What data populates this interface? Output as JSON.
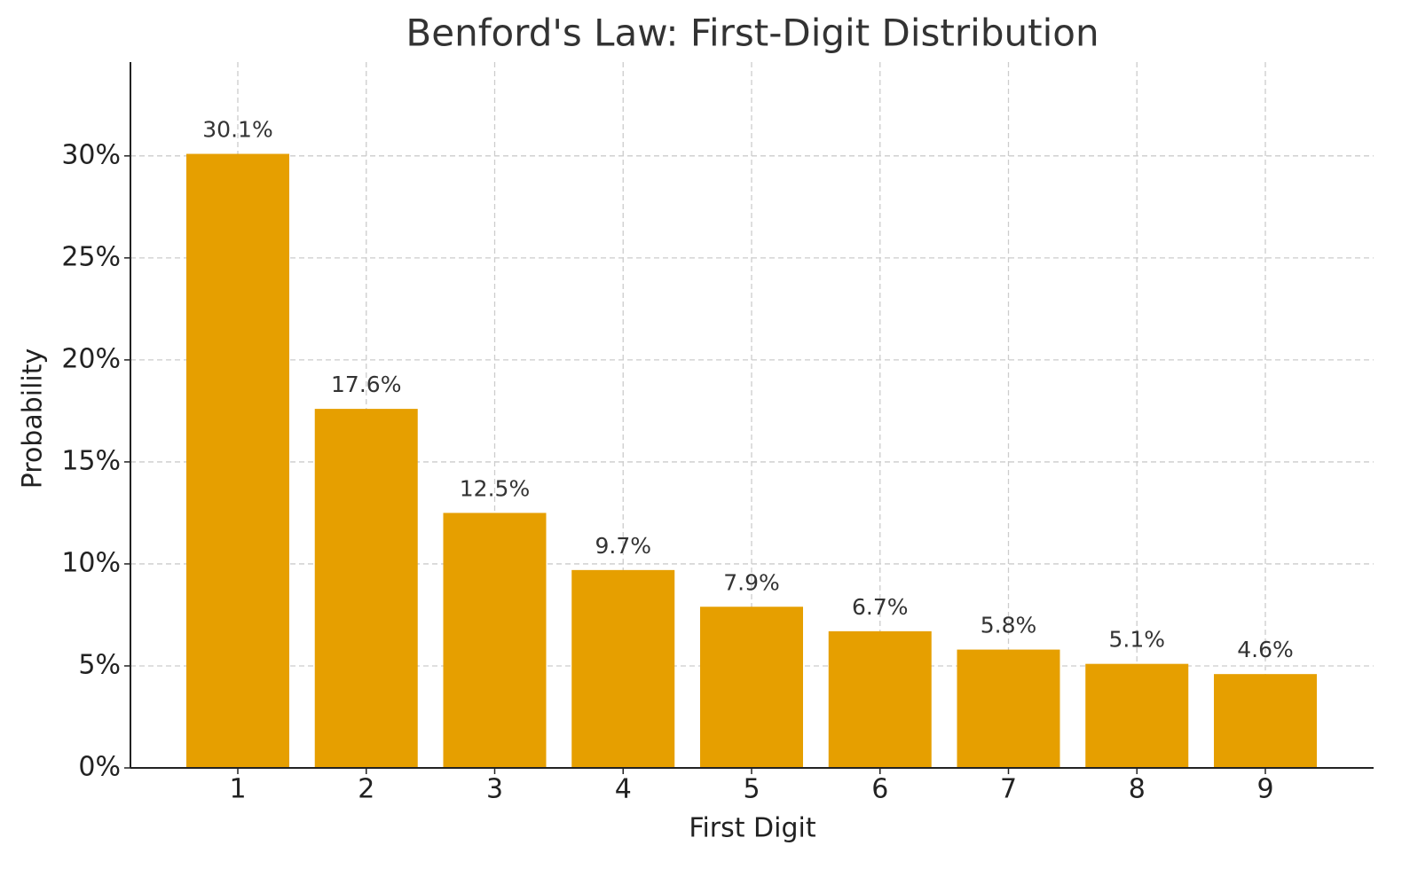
{
  "chart_data": {
    "type": "bar",
    "title": "Benford's Law: First-Digit Distribution",
    "x_label": "First Digit",
    "y_label": "Probability",
    "categories": [
      "1",
      "2",
      "3",
      "4",
      "5",
      "6",
      "7",
      "8",
      "9"
    ],
    "values": [
      30.1,
      17.6,
      12.5,
      9.7,
      7.9,
      6.7,
      5.8,
      5.1,
      4.6
    ],
    "value_labels": [
      "30.1%",
      "17.6%",
      "12.5%",
      "9.7%",
      "7.9%",
      "6.7%",
      "5.8%",
      "5.1%",
      "4.6%"
    ],
    "color": "#e69f00",
    "ylim": [
      0,
      34.6
    ],
    "yticks": [
      {
        "value": 0,
        "label": "0%"
      },
      {
        "value": 5,
        "label": "5%"
      },
      {
        "value": 10,
        "label": "10%"
      },
      {
        "value": 15,
        "label": "15%"
      },
      {
        "value": 20,
        "label": "20%"
      },
      {
        "value": 25,
        "label": "25%"
      },
      {
        "value": 30,
        "label": "30%"
      }
    ],
    "grid": true
  }
}
